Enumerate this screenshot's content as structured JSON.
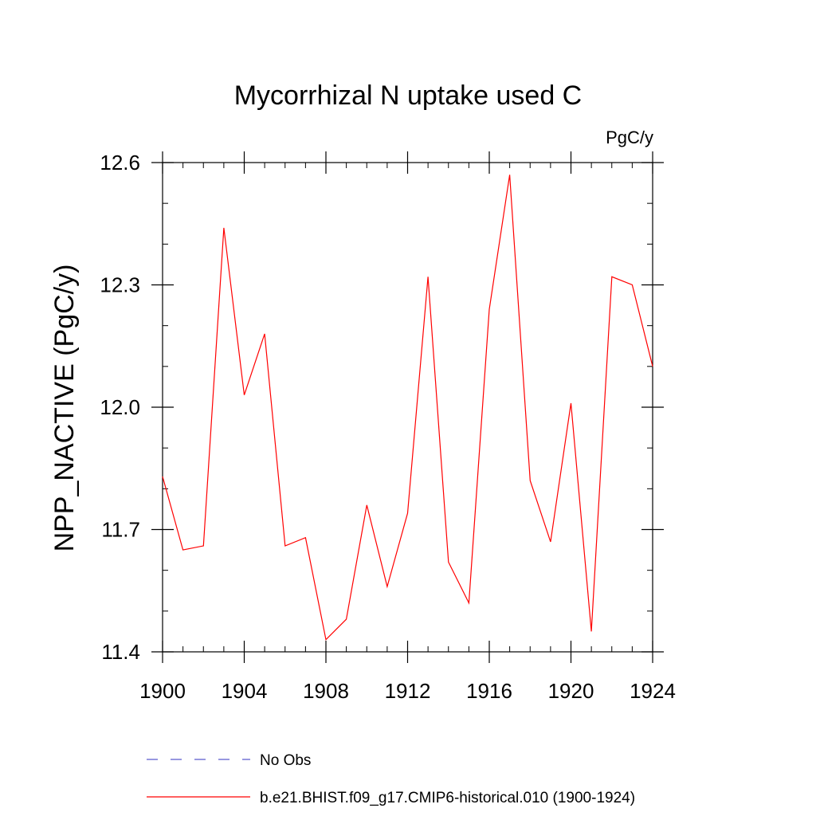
{
  "chart_data": {
    "type": "line",
    "title": "Mycorrhizal N uptake used C",
    "units_label": "PgC/y",
    "ylabel": "NPP_NACTIVE  (PgC/y)",
    "xlabel": "",
    "xlim": [
      1900,
      1924
    ],
    "ylim": [
      11.4,
      12.6
    ],
    "xticks": [
      1900,
      1904,
      1908,
      1912,
      1916,
      1920,
      1924
    ],
    "xtick_labels": [
      "1900",
      "1904",
      "1908",
      "1912",
      "1916",
      "1920",
      "1924"
    ],
    "yticks": [
      11.4,
      11.7,
      12.0,
      12.3,
      12.6
    ],
    "ytick_labels": [
      "11.4",
      "11.7",
      "12.0",
      "12.3",
      "12.6"
    ],
    "grid": false,
    "legend_position": "bottom",
    "series": [
      {
        "name": "b.e21.BHIST.f09_g17.CMIP6-historical.010 (1900-1924)",
        "color": "#ff0000",
        "style": "solid",
        "x": [
          1900,
          1901,
          1902,
          1903,
          1904,
          1905,
          1906,
          1907,
          1908,
          1909,
          1910,
          1911,
          1912,
          1913,
          1914,
          1915,
          1916,
          1917,
          1918,
          1919,
          1920,
          1921,
          1922,
          1923,
          1924
        ],
        "y": [
          11.83,
          11.65,
          11.66,
          12.44,
          12.03,
          12.18,
          11.66,
          11.68,
          11.43,
          11.48,
          11.76,
          11.56,
          11.74,
          12.32,
          11.62,
          11.52,
          12.24,
          12.57,
          11.82,
          11.67,
          12.01,
          11.45,
          12.32,
          12.3,
          12.1
        ]
      }
    ],
    "legend": [
      {
        "label": "No Obs",
        "color": "#5a5acd",
        "style": "dashed"
      },
      {
        "label": "b.e21.BHIST.f09_g17.CMIP6-historical.010 (1900-1924)",
        "color": "#ff0000",
        "style": "solid"
      }
    ]
  }
}
